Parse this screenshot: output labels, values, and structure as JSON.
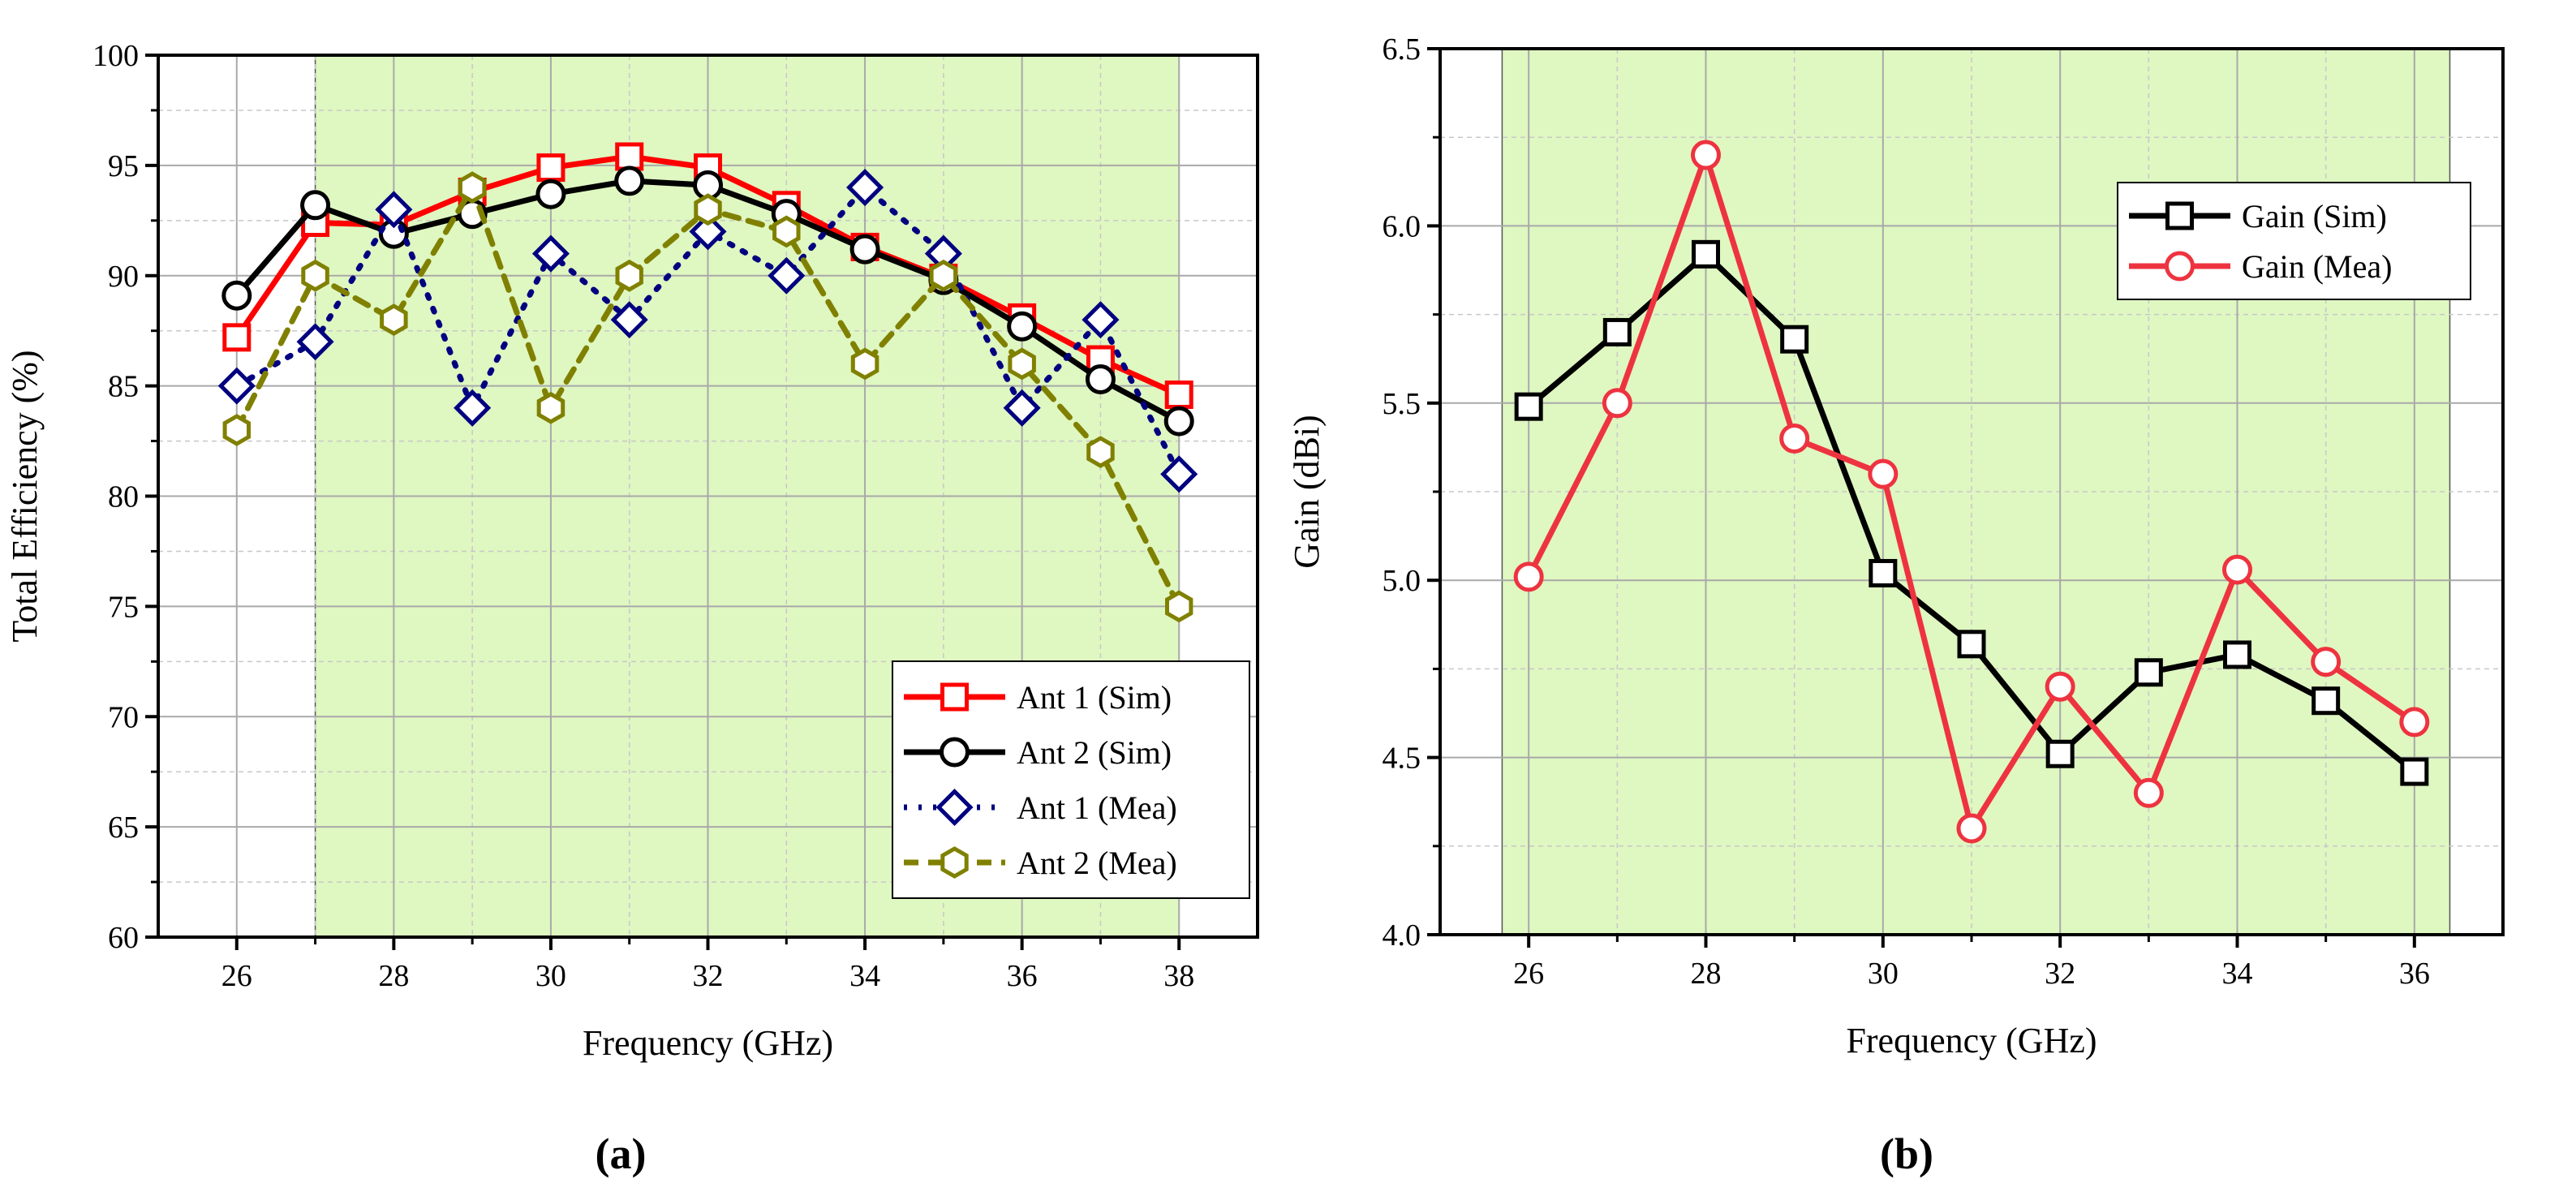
{
  "chart_data": [
    {
      "type": "line",
      "panel_label": "a",
      "xlabel": "Frequency (GHz)",
      "ylabel": "Total Efficiency (%)",
      "xlim": [
        25,
        39
      ],
      "ylim": [
        60,
        100
      ],
      "xticks": [
        26,
        28,
        30,
        32,
        34,
        36,
        38
      ],
      "yticks": [
        60,
        65,
        70,
        75,
        80,
        85,
        90,
        95,
        100
      ],
      "grid": true,
      "shaded_band": {
        "from": 27,
        "to": 38,
        "color": "#dff7c1"
      },
      "legend_position": "bottom-right",
      "x": [
        26,
        27,
        28,
        29,
        30,
        31,
        32,
        33,
        34,
        35,
        36,
        37,
        38
      ],
      "series": [
        {
          "name": "Ant 1 (Sim)",
          "color": "#ff0000",
          "marker": "square",
          "style": "solid",
          "values": [
            87.2,
            92.4,
            92.3,
            93.8,
            94.9,
            95.4,
            94.9,
            93.2,
            91.3,
            89.9,
            88.1,
            86.2,
            84.6
          ]
        },
        {
          "name": "Ant 2 (Sim)",
          "color": "#000000",
          "marker": "circle",
          "style": "solid",
          "values": [
            89.1,
            93.2,
            91.9,
            92.8,
            93.7,
            94.3,
            94.1,
            92.8,
            91.2,
            89.8,
            87.7,
            85.3,
            83.4
          ]
        },
        {
          "name": "Ant 1 (Mea)",
          "color": "#000080",
          "marker": "diamond",
          "style": "dotted",
          "values": [
            85,
            87,
            93,
            84,
            91,
            88,
            92,
            90,
            94,
            91,
            84,
            88,
            81
          ]
        },
        {
          "name": "Ant 2 (Mea)",
          "color": "#808000",
          "marker": "hexagon",
          "style": "dashed",
          "values": [
            83,
            90,
            88,
            94,
            84,
            90,
            93,
            92,
            86,
            90,
            86,
            82,
            75
          ]
        }
      ]
    },
    {
      "type": "line",
      "panel_label": "b",
      "xlabel": "Frequency (GHz)",
      "ylabel": "Gain (dBi)",
      "xlim": [
        25,
        37
      ],
      "ylim": [
        4.0,
        6.5
      ],
      "xticks": [
        26,
        28,
        30,
        32,
        34,
        36
      ],
      "yticks": [
        "4.0",
        "4.5",
        "5.0",
        "5.5",
        "6.0",
        "6.5"
      ],
      "grid": true,
      "shaded_band": {
        "from": 25.7,
        "to": 36.4,
        "color": "#dff7c1"
      },
      "legend_position": "top-right",
      "x": [
        26,
        27,
        28,
        29,
        30,
        31,
        32,
        33,
        34,
        35,
        36
      ],
      "series": [
        {
          "name": "Gain (Sim)",
          "color": "#000000",
          "marker": "square",
          "style": "solid",
          "values": [
            5.49,
            5.7,
            5.92,
            5.68,
            5.02,
            4.82,
            4.51,
            4.74,
            4.79,
            4.66,
            4.46
          ]
        },
        {
          "name": "Gain (Mea)",
          "color": "#ee3340",
          "marker": "circle",
          "style": "solid",
          "values": [
            5.01,
            5.5,
            6.2,
            5.4,
            5.3,
            4.3,
            4.7,
            4.4,
            5.03,
            4.77,
            4.6
          ]
        }
      ]
    }
  ],
  "captions": {
    "a": "(a)",
    "b": "(b)"
  }
}
